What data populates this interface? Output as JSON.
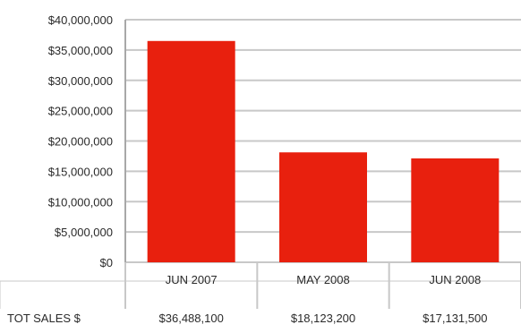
{
  "chart_data": {
    "type": "bar",
    "categories": [
      "JUN 2007",
      "MAY 2008",
      "JUN 2008"
    ],
    "values": [
      36488100,
      18123200,
      17131500
    ],
    "ylim": [
      0,
      40000000
    ],
    "y_ticks": [
      "$0",
      "$5,000,000",
      "$10,000,000",
      "$15,000,000",
      "$20,000,000",
      "$25,000,000",
      "$30,000,000",
      "$35,000,000",
      "$40,000,000"
    ],
    "y_tick_values": [
      0,
      5000000,
      10000000,
      15000000,
      20000000,
      25000000,
      30000000,
      35000000,
      40000000
    ],
    "grid": true,
    "legend": "none",
    "bar_color": "#e8200e",
    "table": {
      "row_label": "TOT SALES $",
      "cells": [
        "$36,488,100",
        "$18,123,200",
        "$17,131,500"
      ]
    }
  }
}
